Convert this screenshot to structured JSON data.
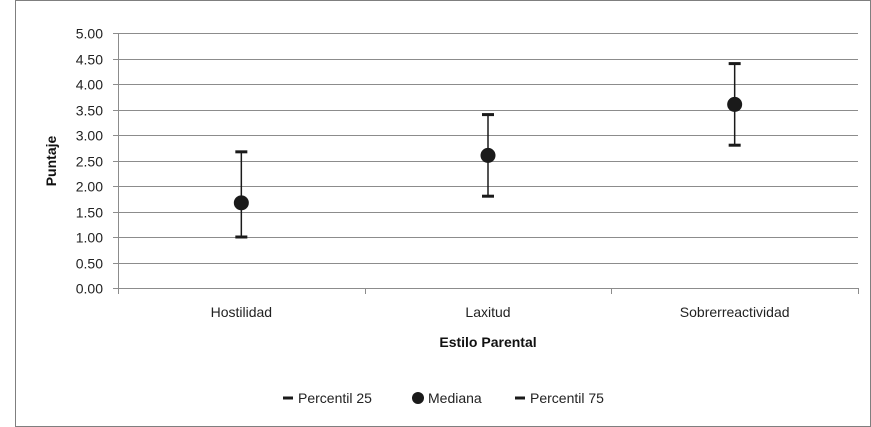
{
  "chart_data": {
    "type": "scatter",
    "categories": [
      "Hostilidad",
      "Laxitud",
      "Sobrerreactividad"
    ],
    "series": [
      {
        "name": "Percentil 25",
        "values": [
          1.0,
          1.8,
          2.8
        ],
        "marker": "dash"
      },
      {
        "name": "Mediana",
        "values": [
          1.67,
          2.6,
          3.6
        ],
        "marker": "circle"
      },
      {
        "name": "Percentil 75",
        "values": [
          2.67,
          3.4,
          4.4
        ],
        "marker": "dash"
      }
    ],
    "yticks": [
      "0.00",
      "0.50",
      "1.00",
      "1.50",
      "2.00",
      "2.50",
      "3.00",
      "3.50",
      "4.00",
      "4.50",
      "5.00"
    ],
    "xlabel": "Estilo Parental",
    "ylabel": "Puntaje",
    "ylim": [
      0,
      5
    ],
    "grid": true,
    "legend_position": "bottom",
    "colors": {
      "marker": "#1a1a1a",
      "grid": "#8c8c8c",
      "axis": "#8c8c8c",
      "frame": "#7f7f7f"
    }
  }
}
